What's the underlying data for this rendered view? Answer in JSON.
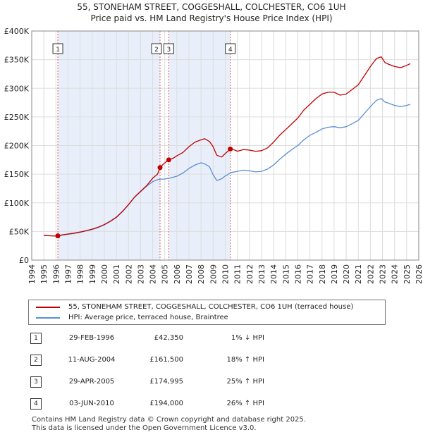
{
  "chart_data": {
    "type": "line",
    "title": "55, STONEHAM STREET, COGGESHALL, COLCHESTER, CO6 1UH",
    "subtitle": "Price paid vs. HM Land Registry's House Price Index (HPI)",
    "xlim": [
      1994,
      2026
    ],
    "ylim": [
      0,
      400000
    ],
    "x_ticks": [
      1994,
      1995,
      1996,
      1997,
      1998,
      1999,
      2000,
      2001,
      2002,
      2003,
      2004,
      2005,
      2006,
      2007,
      2008,
      2009,
      2010,
      2011,
      2012,
      2013,
      2014,
      2015,
      2016,
      2017,
      2018,
      2019,
      2020,
      2021,
      2022,
      2023,
      2024,
      2025,
      2026
    ],
    "y_ticks": [
      {
        "value": 0,
        "label": "£0"
      },
      {
        "value": 50000,
        "label": "£50K"
      },
      {
        "value": 100000,
        "label": "£100K"
      },
      {
        "value": 150000,
        "label": "£150K"
      },
      {
        "value": 200000,
        "label": "£200K"
      },
      {
        "value": 250000,
        "label": "£250K"
      },
      {
        "value": 300000,
        "label": "£300K"
      },
      {
        "value": 350000,
        "label": "£350K"
      },
      {
        "value": 400000,
        "label": "£400K"
      }
    ],
    "shaded_spans": [
      [
        1996.16,
        2004.61
      ],
      [
        2005.33,
        2010.42
      ]
    ],
    "series": [
      {
        "name": "55, STONEHAM STREET, COGGESHALL, COLCHESTER, CO6 1UH (terraced house)",
        "color": "#c00000",
        "x": [
          1995.0,
          1995.5,
          1996.0,
          1996.16,
          1996.5,
          1997.0,
          1997.5,
          1998.0,
          1998.5,
          1999.0,
          1999.5,
          2000.0,
          2000.5,
          2001.0,
          2001.5,
          2002.0,
          2002.5,
          2003.0,
          2003.5,
          2004.0,
          2004.4,
          2004.61,
          2004.9,
          2005.33,
          2005.7,
          2006.0,
          2006.5,
          2007.0,
          2007.5,
          2008.0,
          2008.3,
          2008.7,
          2009.0,
          2009.3,
          2009.7,
          2010.0,
          2010.42,
          2010.8,
          2011.0,
          2011.5,
          2012.0,
          2012.5,
          2013.0,
          2013.5,
          2014.0,
          2014.5,
          2015.0,
          2015.5,
          2016.0,
          2016.5,
          2017.0,
          2017.5,
          2018.0,
          2018.5,
          2019.0,
          2019.5,
          2020.0,
          2020.5,
          2021.0,
          2021.5,
          2022.0,
          2022.5,
          2022.9,
          2023.2,
          2023.5,
          2024.0,
          2024.5,
          2025.0,
          2025.3
        ],
        "values": [
          43500,
          42500,
          42000,
          42350,
          44000,
          45500,
          47000,
          49000,
          51500,
          54000,
          57500,
          62000,
          68000,
          75000,
          85000,
          97000,
          110000,
          120000,
          130000,
          143000,
          150000,
          161500,
          168000,
          174995,
          178000,
          182000,
          188000,
          198000,
          206000,
          210000,
          212000,
          207000,
          198000,
          183000,
          180000,
          186000,
          194000,
          192000,
          190000,
          193000,
          192000,
          190000,
          191000,
          196000,
          206000,
          218000,
          228000,
          238000,
          248000,
          262000,
          272000,
          282000,
          290000,
          293000,
          293000,
          288000,
          290000,
          298000,
          306000,
          322000,
          338000,
          352000,
          355000,
          345000,
          342000,
          338000,
          336000,
          340000,
          343000
        ]
      },
      {
        "name": "HPI: Average price, terraced house, Braintree",
        "color": "#5a8fd4",
        "x": [
          1995.0,
          1995.5,
          1996.0,
          1996.5,
          1997.0,
          1997.5,
          1998.0,
          1998.5,
          1999.0,
          1999.5,
          2000.0,
          2000.5,
          2001.0,
          2001.5,
          2002.0,
          2002.5,
          2003.0,
          2003.5,
          2004.0,
          2004.5,
          2005.0,
          2005.5,
          2006.0,
          2006.5,
          2007.0,
          2007.5,
          2008.0,
          2008.3,
          2008.7,
          2009.0,
          2009.3,
          2009.7,
          2010.0,
          2010.5,
          2011.0,
          2011.5,
          2012.0,
          2012.5,
          2013.0,
          2013.5,
          2014.0,
          2014.5,
          2015.0,
          2015.5,
          2016.0,
          2016.5,
          2017.0,
          2017.5,
          2018.0,
          2018.5,
          2019.0,
          2019.5,
          2020.0,
          2020.5,
          2021.0,
          2021.5,
          2022.0,
          2022.5,
          2022.9,
          2023.2,
          2023.5,
          2024.0,
          2024.5,
          2025.0,
          2025.3
        ],
        "values": [
          43000,
          42500,
          42000,
          43500,
          45000,
          46500,
          48500,
          51000,
          53500,
          57000,
          61500,
          67500,
          74500,
          84500,
          96500,
          109500,
          119500,
          129000,
          137000,
          141000,
          141500,
          143500,
          146500,
          152000,
          160000,
          166000,
          170000,
          168000,
          163000,
          149000,
          139000,
          142000,
          147000,
          153000,
          155000,
          157000,
          156000,
          154000,
          155000,
          159000,
          166000,
          176000,
          185000,
          193000,
          200000,
          210000,
          218000,
          223000,
          229000,
          232000,
          233000,
          231000,
          233000,
          238000,
          244000,
          256000,
          268000,
          279000,
          282000,
          276000,
          274000,
          270000,
          268000,
          270000,
          272000
        ]
      }
    ],
    "markers": [
      {
        "label": "1",
        "x": 1996.16,
        "y": 42350
      },
      {
        "label": "2",
        "x": 2004.61,
        "y": 161500
      },
      {
        "label": "3",
        "x": 2005.33,
        "y": 174995
      },
      {
        "label": "4",
        "x": 2010.42,
        "y": 194000
      }
    ]
  },
  "legend": {
    "property": "55, STONEHAM STREET, COGGESHALL, COLCHESTER, CO6 1UH (terraced house)",
    "hpi": "HPI: Average price, terraced house, Braintree"
  },
  "sales": [
    {
      "num": "1",
      "date": "29-FEB-1996",
      "price": "£42,350",
      "hpi": "1% ↓ HPI"
    },
    {
      "num": "2",
      "date": "11-AUG-2004",
      "price": "£161,500",
      "hpi": "18% ↑ HPI"
    },
    {
      "num": "3",
      "date": "29-APR-2005",
      "price": "£174,995",
      "hpi": "25% ↑ HPI"
    },
    {
      "num": "4",
      "date": "03-JUN-2010",
      "price": "£194,000",
      "hpi": "26% ↑ HPI"
    }
  ],
  "footer": {
    "line1": "Contains HM Land Registry data © Crown copyright and database right 2025.",
    "line2": "This data is licensed under the Open Government Licence v3.0."
  },
  "colors": {
    "property_line": "#c00000",
    "hpi_line": "#5a8fd4",
    "shade": "#e8eefa",
    "grid": "#dddddd"
  }
}
